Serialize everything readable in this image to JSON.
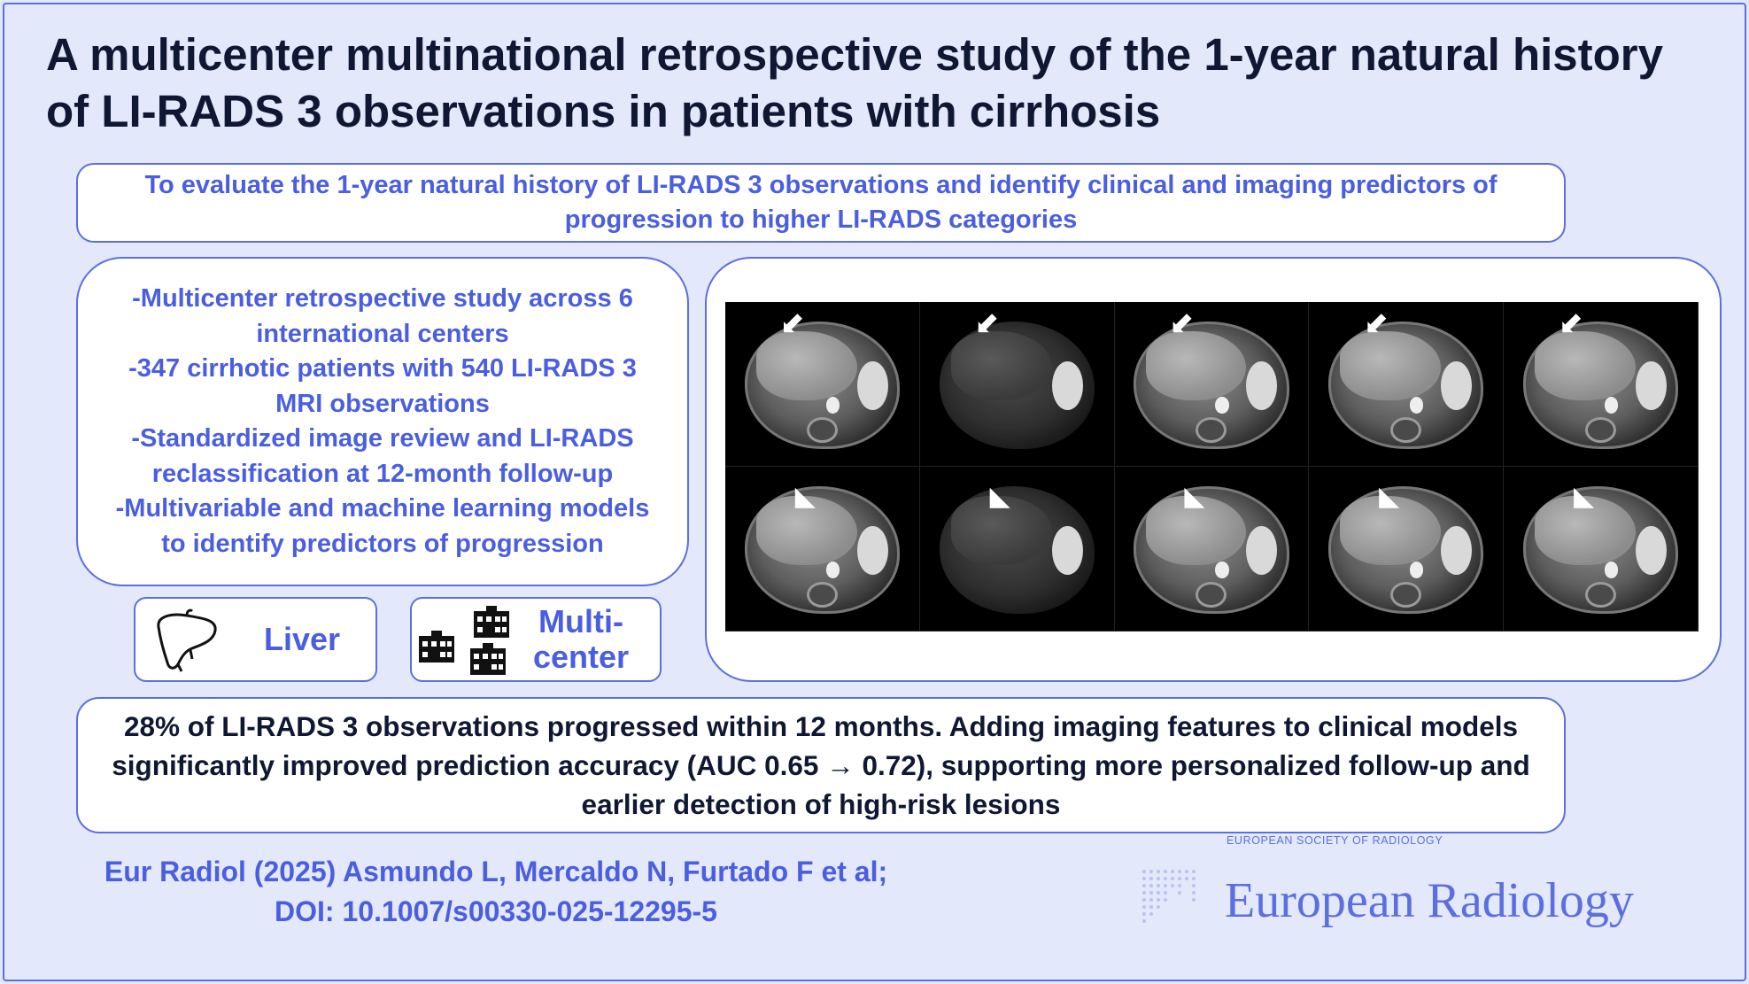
{
  "title": "A multicenter multinational retrospective study of the 1-year natural history of LI-RADS 3 observations in patients with cirrhosis",
  "aim": "To evaluate the 1-year natural history of LI-RADS 3 observations and identify clinical and imaging predictors of progression to higher LI-RADS categories",
  "methods": [
    "-Multicenter retrospective study across 6 international centers",
    "-347 cirrhotic patients with 540 LI-RADS 3 MRI observations",
    "-Standardized image review and LI-RADS reclassification at 12-month follow-up",
    "-Multivariable and machine learning models to identify predictors of progression"
  ],
  "badges": {
    "liver": {
      "label": "Liver",
      "icon": "liver-icon"
    },
    "multicenter": {
      "label": "Multi-center",
      "icon": "hospital-buildings-icon"
    }
  },
  "mri_panel": {
    "top_row_marker": "arrow-icon",
    "bottom_row_marker": "arrowhead-icon",
    "panels_per_row": 5
  },
  "result": "28% of LI-RADS 3 observations progressed within 12 months. Adding imaging features to clinical models significantly improved prediction accuracy (AUC 0.65 → 0.72), supporting more personalized follow-up and earlier detection of high-risk lesions",
  "citation": {
    "line1": "Eur Radiol (2025) Asmundo L, Mercaldo N, Furtado F et al;",
    "line2": "DOI: 10.1007/s00330-025-12295-5"
  },
  "journal": {
    "society": "EUROPEAN SOCIETY OF RADIOLOGY",
    "name": "European Radiology"
  },
  "colors": {
    "background": "#e3e8fb",
    "accent": "#4a5ee0",
    "border": "#5b6fe0",
    "dark_text": "#0f1733"
  }
}
